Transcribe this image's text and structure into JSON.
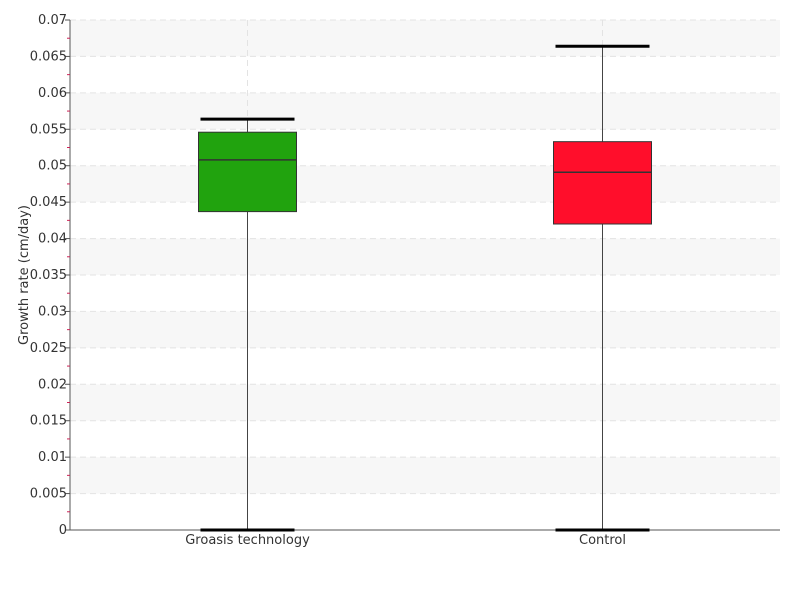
{
  "chart_data": {
    "type": "box",
    "title": "",
    "xlabel": "",
    "ylabel": "Growth rate (cm/day)",
    "ylim": [
      0,
      0.07
    ],
    "yticks": [
      0,
      0.005,
      0.01,
      0.015,
      0.02,
      0.025,
      0.03,
      0.035,
      0.04,
      0.045,
      0.05,
      0.055,
      0.06,
      0.065,
      0.07
    ],
    "ytick_labels": [
      "0",
      "0.005",
      "0.01",
      "0.015",
      "0.02",
      "0.025",
      "0.03",
      "0.035",
      "0.04",
      "0.045",
      "0.05",
      "0.055",
      "0.06",
      "0.065",
      "0.07"
    ],
    "grid": true,
    "categories": [
      "Groasis technology",
      "Control"
    ],
    "boxes": [
      {
        "category": "Groasis technology",
        "min": 0.0,
        "q1": 0.0437,
        "median": 0.0508,
        "q3": 0.0546,
        "max": 0.0564,
        "color": "#21a30e"
      },
      {
        "category": "Control",
        "min": 0.0,
        "q1": 0.042,
        "median": 0.0491,
        "q3": 0.0533,
        "max": 0.0664,
        "color": "#ff0e2b"
      }
    ]
  }
}
